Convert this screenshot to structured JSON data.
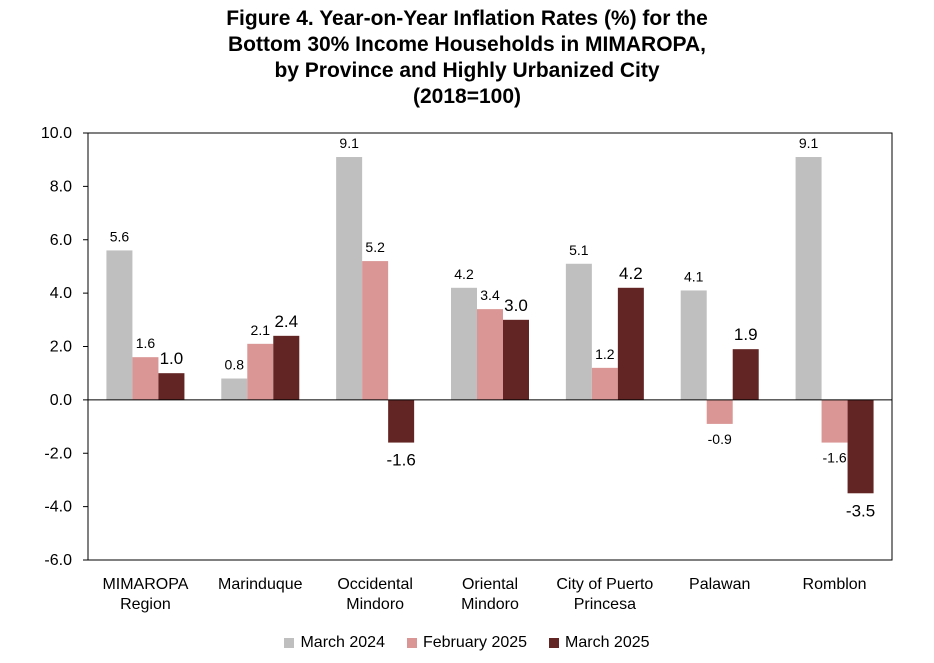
{
  "chart_data": {
    "type": "bar",
    "title_lines": [
      "Figure 4. Year-on-Year Inflation Rates (%) for the",
      "Bottom 30% Income Households in MIMAROPA,",
      "by Province and Highly Urbanized City",
      "(2018=100)"
    ],
    "categories": [
      [
        "MIMAROPA",
        "Region"
      ],
      [
        "Marinduque"
      ],
      [
        "Occidental",
        "Mindoro"
      ],
      [
        "Oriental",
        "Mindoro"
      ],
      [
        "City of Puerto",
        "Princesa"
      ],
      [
        "Palawan"
      ],
      [
        "Romblon"
      ]
    ],
    "series": [
      {
        "name": "March 2024",
        "color": "#BFBFBF",
        "values": [
          5.6,
          0.8,
          9.1,
          4.2,
          5.1,
          4.1,
          9.1
        ],
        "labels": [
          "5.6",
          "0.8",
          "9.1",
          "4.2",
          "5.1",
          "4.1",
          "9.1"
        ]
      },
      {
        "name": "February 2025",
        "color": "#D99694",
        "values": [
          1.6,
          2.1,
          5.2,
          3.4,
          1.2,
          -0.9,
          -1.6
        ],
        "labels": [
          "1.6",
          "2.1",
          "5.2",
          "3.4",
          "1.2",
          "-0.9",
          "-1.6"
        ]
      },
      {
        "name": "March 2025",
        "color": "#632523",
        "values": [
          1.0,
          2.4,
          -1.6,
          3.0,
          4.2,
          1.9,
          -3.5
        ],
        "labels": [
          "1.0",
          "2.4",
          "-1.6",
          "3.0",
          "4.2",
          "1.9",
          "-3.5"
        ]
      }
    ],
    "ylim": [
      -6,
      10
    ],
    "yticks": [
      10,
      8,
      6,
      4,
      2,
      0,
      -2,
      -4,
      -6
    ],
    "ytick_labels": [
      "10.0",
      "8.0",
      "6.0",
      "4.0",
      "2.0",
      "0.0",
      "-2.0",
      "-4.0",
      "-6.0"
    ],
    "grid": false,
    "legend_position": "bottom"
  }
}
